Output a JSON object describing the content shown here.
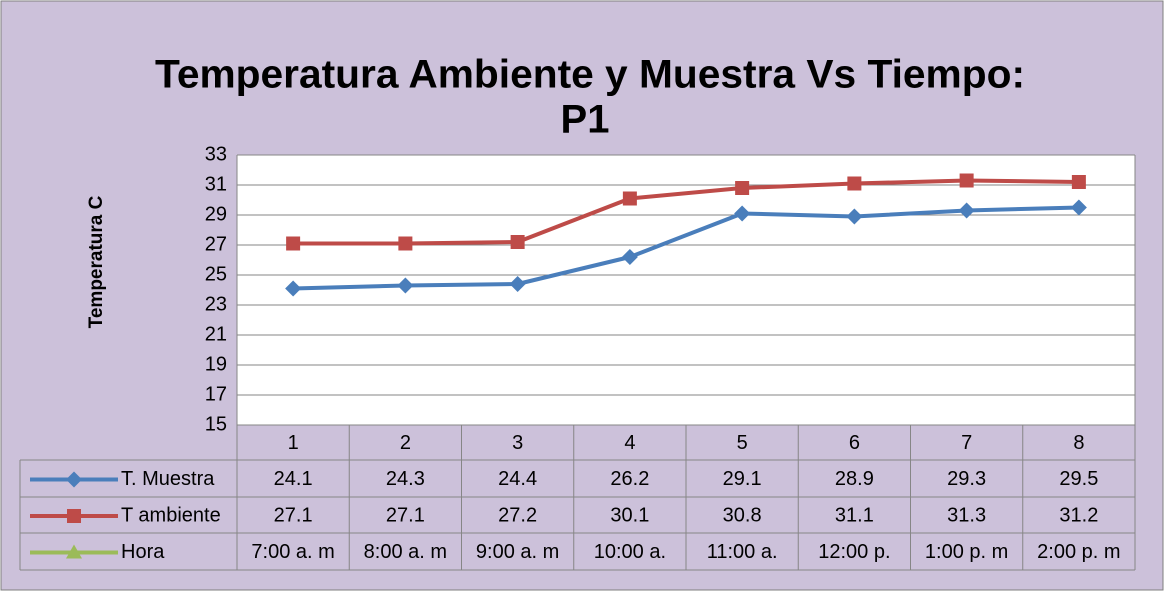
{
  "chart_data": {
    "type": "line",
    "title": [
      "Temperatura  Ambiente y Muestra  Vs Tiempo:",
      "P1"
    ],
    "y_label": "Temperatura  C",
    "categories": [
      "1",
      "2",
      "3",
      "4",
      "5",
      "6",
      "7",
      "8"
    ],
    "series": [
      {
        "name": "T. Muestra",
        "color": "#4a7ebb",
        "marker": "diamond",
        "values": [
          24.1,
          24.3,
          24.4,
          26.2,
          29.1,
          28.9,
          29.3,
          29.5
        ]
      },
      {
        "name": "T ambiente",
        "color": "#be4b48",
        "marker": "square",
        "values": [
          27.1,
          27.1,
          27.2,
          30.1,
          30.8,
          31.1,
          31.3,
          31.2
        ]
      },
      {
        "name": "Hora",
        "color": "#9bbb59",
        "marker": "triangle",
        "values": [
          "7:00 a. m",
          "8:00 a. m",
          "9:00 a. m",
          "10:00 a.",
          "11:00 a.",
          "12:00 p.",
          "1:00 p. m",
          "2:00 p. m"
        ]
      }
    ],
    "ylim": [
      15,
      33
    ],
    "yticks": [
      15,
      17,
      19,
      21,
      23,
      25,
      27,
      29,
      31,
      33
    ],
    "grid": true
  }
}
